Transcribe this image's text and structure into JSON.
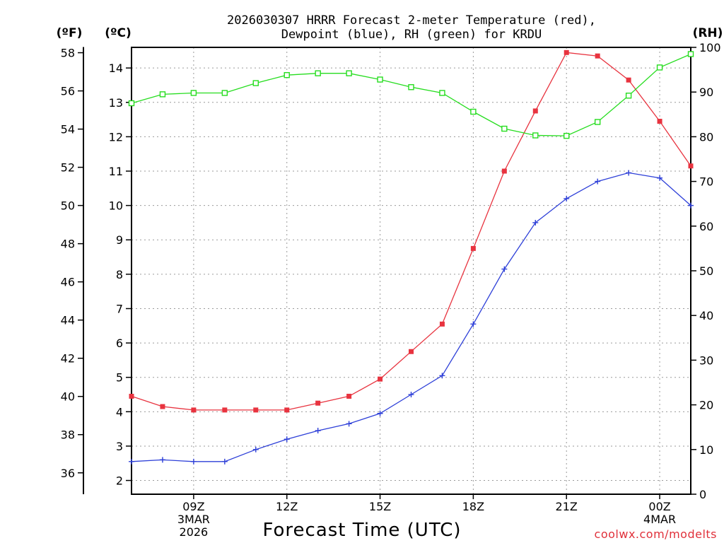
{
  "chart_data": {
    "type": "line",
    "title_line1": "2026030307 HRRR Forecast 2-meter Temperature (red),",
    "title_line2": "Dewpoint (blue), RH (green) for KRDU",
    "xlabel": "Forecast Time (UTC)",
    "credit": "coolwx.com/modelts",
    "units": {
      "f": "(ºF)",
      "c": "(ºC)",
      "rh": "(RH)"
    },
    "hours": [
      7,
      8,
      9,
      10,
      11,
      12,
      13,
      14,
      15,
      16,
      17,
      18,
      19,
      20,
      21,
      22,
      23,
      24,
      25
    ],
    "xlim": [
      7,
      25
    ],
    "x_ticks": [
      {
        "hour": 9,
        "lines": [
          "09Z",
          "3MAR",
          "2026"
        ]
      },
      {
        "hour": 12,
        "lines": [
          "12Z"
        ]
      },
      {
        "hour": 15,
        "lines": [
          "15Z"
        ]
      },
      {
        "hour": 18,
        "lines": [
          "18Z"
        ]
      },
      {
        "hour": 21,
        "lines": [
          "21Z"
        ]
      },
      {
        "hour": 24,
        "lines": [
          "00Z",
          "4MAR"
        ]
      }
    ],
    "c_axis": {
      "range": [
        1.6,
        14.6
      ],
      "ticks": [
        2,
        3,
        4,
        5,
        6,
        7,
        8,
        9,
        10,
        11,
        12,
        13,
        14
      ]
    },
    "f_ticks": [
      36,
      38,
      40,
      42,
      44,
      46,
      48,
      50,
      52,
      54,
      56,
      58
    ],
    "rh_axis": {
      "range": [
        0,
        100
      ],
      "ticks": [
        0,
        10,
        20,
        30,
        40,
        50,
        60,
        70,
        80,
        90,
        100
      ]
    },
    "series": [
      {
        "name": "Temperature",
        "axis": "c",
        "color": "#e8333f",
        "marker": "filled-square",
        "values": [
          4.45,
          4.15,
          4.05,
          4.05,
          4.05,
          4.05,
          4.25,
          4.45,
          4.95,
          5.75,
          6.55,
          8.75,
          11.0,
          12.75,
          14.45,
          14.35,
          13.65,
          12.45,
          11.15
        ]
      },
      {
        "name": "Dewpoint",
        "axis": "c",
        "color": "#2d3fd8",
        "marker": "plus",
        "values": [
          2.55,
          2.6,
          2.55,
          2.55,
          2.9,
          3.2,
          3.45,
          3.65,
          3.95,
          4.5,
          5.05,
          6.55,
          8.15,
          9.5,
          10.2,
          10.7,
          10.95,
          10.8,
          10.0
        ]
      },
      {
        "name": "RH",
        "axis": "rh",
        "color": "#26dd1f",
        "marker": "open-square",
        "values": [
          87.5,
          89.5,
          89.8,
          89.8,
          92.0,
          93.8,
          94.2,
          94.2,
          92.8,
          91.1,
          89.8,
          85.6,
          81.8,
          80.3,
          80.2,
          83.3,
          89.2,
          95.5,
          98.5
        ]
      }
    ]
  }
}
